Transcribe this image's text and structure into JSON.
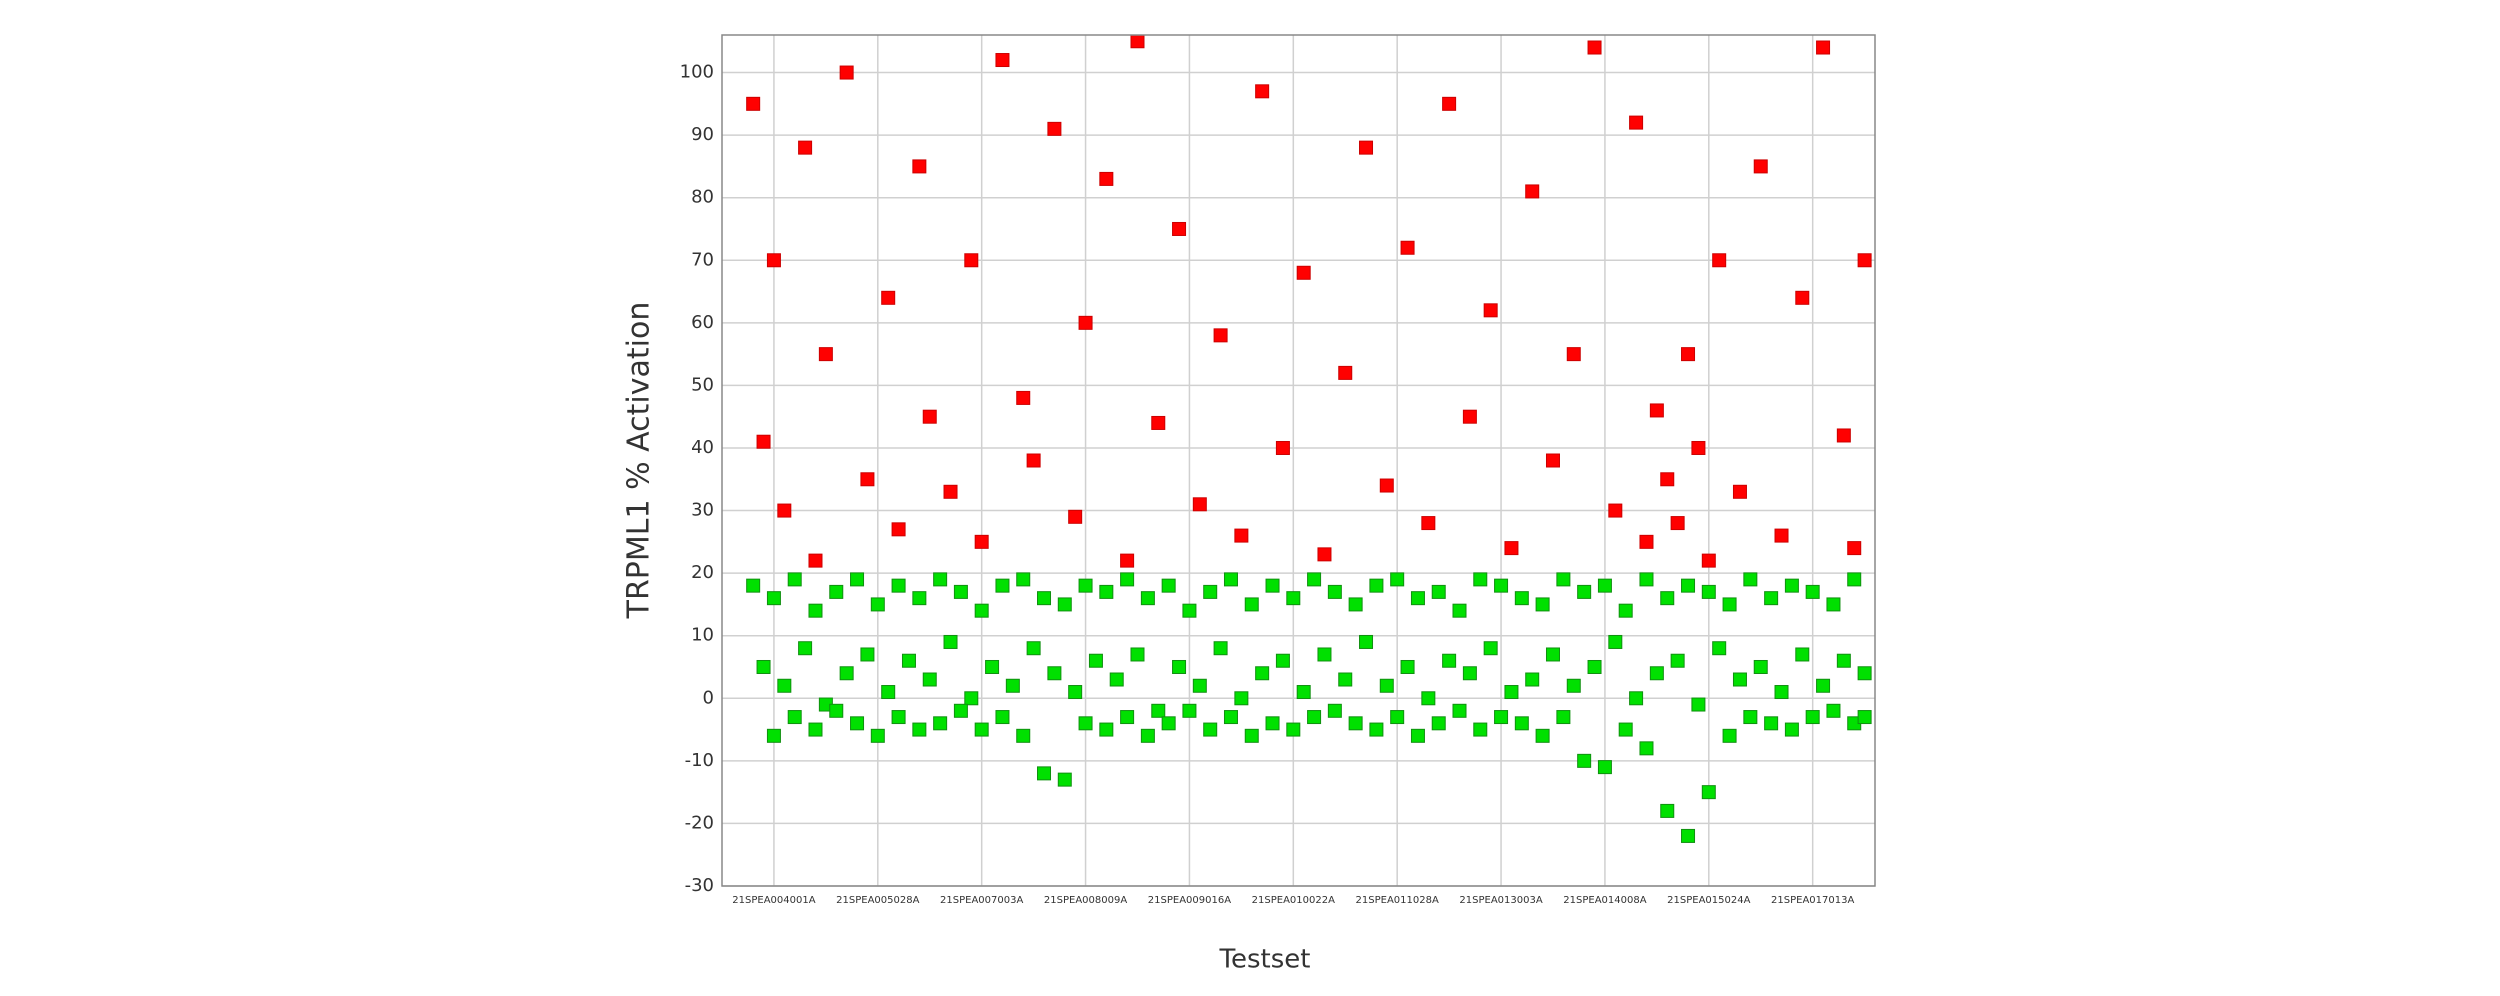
{
  "chart_data": {
    "type": "scatter",
    "xlabel": "Testset",
    "ylabel": "TRPML1 % Activation",
    "xlim": [
      0,
      11.1
    ],
    "ylim": [
      -30,
      106
    ],
    "xticks": [
      {
        "value": 0.5,
        "label": "21SPEA004001A"
      },
      {
        "value": 1.5,
        "label": "21SPEA005028A"
      },
      {
        "value": 2.5,
        "label": "21SPEA007003A"
      },
      {
        "value": 3.5,
        "label": "21SPEA008009A"
      },
      {
        "value": 4.5,
        "label": "21SPEA009016A"
      },
      {
        "value": 5.5,
        "label": "21SPEA010022A"
      },
      {
        "value": 6.5,
        "label": "21SPEA011028A"
      },
      {
        "value": 7.5,
        "label": "21SPEA013003A"
      },
      {
        "value": 8.5,
        "label": "21SPEA014008A"
      },
      {
        "value": 9.5,
        "label": "21SPEA015024A"
      },
      {
        "value": 10.5,
        "label": "21SPEA017013A"
      }
    ],
    "yticks": [
      -30,
      -20,
      -10,
      0,
      10,
      20,
      30,
      40,
      50,
      60,
      70,
      80,
      90,
      100
    ],
    "grid": true,
    "series": [
      {
        "color": "#ff0000",
        "edge": "#cc0000",
        "x": [
          0.3,
          0.4,
          0.5,
          0.6,
          0.8,
          0.9,
          1.0,
          1.2,
          1.4,
          1.6,
          1.7,
          1.9,
          2.0,
          2.2,
          2.4,
          2.5,
          2.7,
          2.9,
          3.0,
          3.2,
          3.4,
          3.5,
          3.7,
          3.9,
          4.0,
          4.2,
          4.4,
          4.6,
          4.8,
          5.0,
          5.2,
          5.4,
          5.6,
          5.8,
          6.0,
          6.2,
          6.4,
          6.6,
          6.8,
          7.0,
          7.2,
          7.4,
          7.6,
          7.8,
          8.0,
          8.2,
          8.4,
          8.6,
          8.8,
          8.9,
          9.0,
          9.1,
          9.2,
          9.3,
          9.4,
          9.5,
          9.6,
          9.8,
          10.0,
          10.2,
          10.4,
          10.6,
          10.8,
          10.9,
          11.0
        ],
        "values": [
          95,
          41,
          70,
          30,
          88,
          22,
          55,
          100,
          35,
          64,
          27,
          85,
          45,
          33,
          70,
          25,
          102,
          48,
          38,
          91,
          29,
          60,
          83,
          22,
          105,
          44,
          75,
          31,
          58,
          26,
          97,
          40,
          68,
          23,
          52,
          88,
          34,
          72,
          28,
          95,
          45,
          62,
          24,
          81,
          38,
          55,
          104,
          30,
          92,
          25,
          46,
          35,
          28,
          55,
          40,
          22,
          70,
          33,
          85,
          26,
          64,
          104,
          42,
          24,
          70
        ]
      },
      {
        "color": "#00e000",
        "edge": "#109010",
        "x": [
          0.3,
          0.5,
          0.7,
          0.9,
          1.1,
          1.3,
          1.5,
          1.7,
          1.9,
          2.1,
          2.3,
          2.5,
          2.7,
          2.9,
          3.1,
          3.3,
          3.5,
          3.7,
          3.9,
          4.1,
          4.3,
          4.5,
          4.7,
          4.9,
          5.1,
          5.3,
          5.5,
          5.7,
          5.9,
          6.1,
          6.3,
          6.5,
          6.7,
          6.9,
          7.1,
          7.3,
          7.5,
          7.7,
          7.9,
          8.1,
          8.3,
          8.5,
          8.7,
          8.9,
          9.1,
          9.3,
          9.5,
          9.7,
          9.9,
          10.1,
          10.3,
          10.5,
          10.7,
          10.9,
          0.4,
          0.6,
          0.8,
          1.0,
          1.2,
          1.4,
          1.6,
          1.8,
          2.0,
          2.2,
          2.4,
          2.6,
          2.8,
          3.0,
          3.2,
          3.4,
          3.6,
          3.8,
          4.0,
          4.2,
          4.4,
          4.6,
          4.8,
          5.0,
          5.2,
          5.4,
          5.6,
          5.8,
          6.0,
          6.2,
          6.4,
          6.6,
          6.8,
          7.0,
          7.2,
          7.4,
          7.6,
          7.8,
          8.0,
          8.2,
          8.4,
          8.6,
          8.8,
          9.0,
          9.2,
          9.4,
          9.6,
          9.8,
          10.0,
          10.2,
          10.4,
          10.6,
          10.8,
          11.0,
          0.5,
          0.7,
          0.9,
          1.1,
          1.3,
          1.5,
          1.7,
          1.9,
          2.1,
          2.3,
          2.5,
          2.7,
          2.9,
          3.1,
          3.3,
          3.5,
          3.7,
          3.9,
          4.1,
          4.3,
          4.5,
          4.7,
          4.9,
          5.1,
          5.3,
          5.5,
          5.7,
          5.9,
          6.1,
          6.3,
          6.5,
          6.7,
          6.9,
          7.1,
          7.3,
          7.5,
          7.7,
          7.9,
          8.1,
          8.3,
          8.5,
          8.7,
          8.9,
          9.1,
          9.3,
          9.5,
          9.7,
          9.9,
          10.1,
          10.3,
          10.5,
          10.7,
          10.9,
          11.0
        ],
        "values": [
          18,
          16,
          19,
          14,
          17,
          19,
          15,
          18,
          16,
          19,
          17,
          14,
          18,
          19,
          16,
          15,
          18,
          17,
          19,
          16,
          18,
          14,
          17,
          19,
          15,
          18,
          16,
          19,
          17,
          15,
          18,
          19,
          16,
          17,
          14,
          19,
          18,
          16,
          15,
          19,
          17,
          18,
          14,
          19,
          16,
          18,
          17,
          15,
          19,
          16,
          18,
          17,
          15,
          19,
          5,
          2,
          8,
          -1,
          4,
          7,
          1,
          6,
          3,
          9,
          0,
          5,
          2,
          8,
          4,
          1,
          6,
          3,
          7,
          -2,
          5,
          2,
          8,
          0,
          4,
          6,
          1,
          7,
          3,
          9,
          2,
          5,
          0,
          6,
          4,
          8,
          1,
          3,
          7,
          2,
          5,
          9,
          0,
          4,
          6,
          -1,
          8,
          3,
          5,
          1,
          7,
          2,
          6,
          4,
          -6,
          -3,
          -5,
          -2,
          -4,
          -6,
          -3,
          -5,
          -4,
          -2,
          -5,
          -3,
          -6,
          -12,
          -13,
          -4,
          -5,
          -3,
          -6,
          -4,
          -2,
          -5,
          -3,
          -6,
          -4,
          -5,
          -3,
          -2,
          -4,
          -5,
          -3,
          -6,
          -4,
          -2,
          -5,
          -3,
          -4,
          -6,
          -3,
          -10,
          -11,
          -5,
          -8,
          -18,
          -22,
          -15,
          -6,
          -3,
          -4,
          -5,
          -3,
          -2,
          -4,
          -3
        ]
      }
    ]
  }
}
